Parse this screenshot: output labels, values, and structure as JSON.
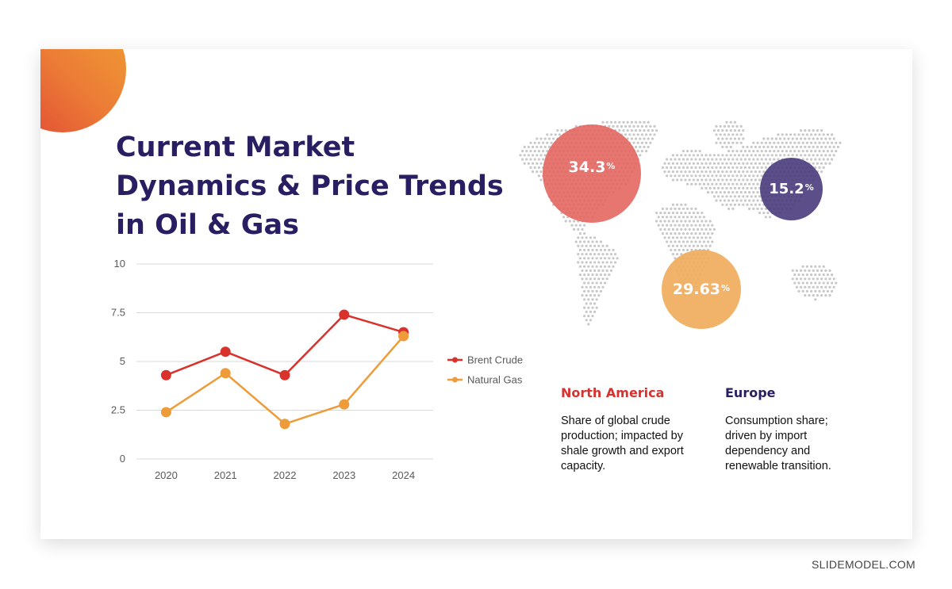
{
  "title": {
    "line1": "Current Market",
    "line2": "Dynamics & Price Trends",
    "line3": "in Oil & Gas"
  },
  "chart_data": {
    "type": "line",
    "title": "",
    "xlabel": "",
    "ylabel": "",
    "x": [
      "2020",
      "2021",
      "2022",
      "2023",
      "2024"
    ],
    "ylim": [
      0,
      10
    ],
    "yticks": [
      0,
      2.5,
      5,
      7.5,
      10
    ],
    "ytick_labels": [
      "0",
      "2.5",
      "5",
      "7.5",
      "10"
    ],
    "grid": true,
    "legend_position": "right",
    "series": [
      {
        "name": "Brent Crude",
        "color": "#d9312b",
        "values": [
          4.3,
          5.5,
          4.3,
          7.4,
          6.5
        ]
      },
      {
        "name": "Natural Gas",
        "color": "#ee9b3a",
        "values": [
          2.4,
          4.4,
          1.8,
          2.8,
          6.3
        ]
      }
    ]
  },
  "bubbles": [
    {
      "id": "north-america",
      "value": "34.3",
      "unit": "%",
      "color": "#e4625c"
    },
    {
      "id": "europe",
      "value": "15.2",
      "unit": "%",
      "color": "#453779"
    },
    {
      "id": "south-america",
      "value": "29.63",
      "unit": "%",
      "color": "#f0ad5c"
    }
  ],
  "regions": [
    {
      "title": "North America",
      "description": "Share of global crude production; impacted by shale growth and export capacity."
    },
    {
      "title": "Europe",
      "description": "Consumption share; driven by import dependency and renewable transition."
    }
  ],
  "footer": {
    "brand": "SLIDEMODEL.COM"
  }
}
